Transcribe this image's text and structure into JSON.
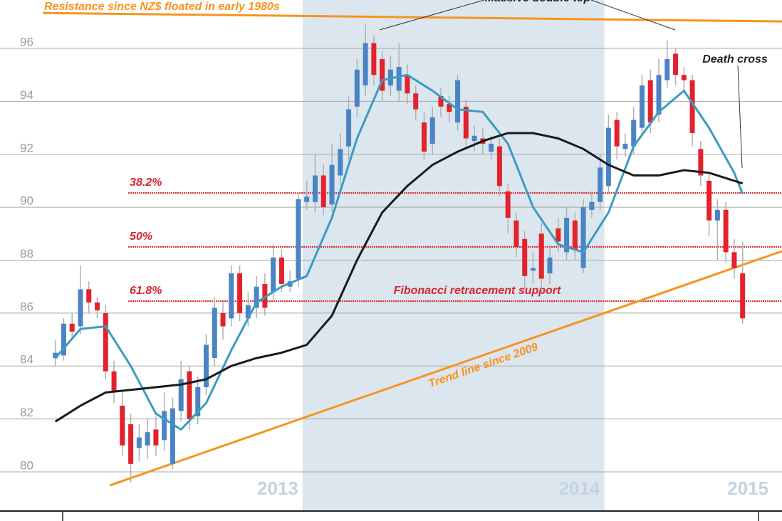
{
  "chart_data": {
    "type": "candlestick",
    "ylim": [
      78.52,
      97.83
    ],
    "yticks": [
      80,
      82,
      84,
      86,
      88,
      90,
      92,
      94,
      96
    ],
    "xlim": [
      -6.6,
      86.7
    ],
    "grid": true,
    "up_color": "#4a84c4",
    "down_color": "#e3222c",
    "open": [
      84.3,
      84.4,
      85.6,
      85.5,
      86.9,
      86.4,
      86.0,
      83.8,
      82.5,
      81.8,
      80.9,
      81.0,
      81.6,
      81.2,
      80.3,
      82.3,
      83.8,
      82.1,
      83.2,
      84.3,
      86.0,
      85.8,
      87.5,
      85.8,
      86.2,
      87.1,
      86.8,
      88.1,
      87.0,
      87.3,
      90.2,
      90.2,
      91.2,
      90.1,
      91.2,
      92.3,
      93.8,
      94.6,
      96.2,
      95.6,
      94.6,
      94.4,
      95.0,
      94.3,
      93.2,
      92.4,
      94.2,
      93.9,
      93.2,
      93.8,
      92.5,
      92.6,
      92.1,
      92.3,
      90.6,
      89.5,
      88.8,
      87.6,
      89.0,
      87.5,
      89.2,
      88.3,
      89.5,
      87.7,
      89.9,
      90.2,
      90.8,
      93.3,
      92.2,
      92.3,
      93.0,
      94.8,
      93.5,
      94.8,
      95.8,
      95.0,
      94.8,
      92.2,
      91.0,
      89.5,
      89.9,
      88.3,
      87.5
    ],
    "high": [
      85.0,
      85.8,
      86.0,
      87.8,
      87.2,
      86.6,
      86.3,
      84.2,
      83.0,
      82.2,
      81.8,
      82.0,
      82.1,
      83.0,
      82.8,
      84.2,
      84.0,
      83.6,
      85.2,
      86.6,
      86.4,
      87.8,
      87.8,
      86.8,
      87.4,
      87.5,
      88.6,
      88.4,
      87.6,
      90.5,
      91.0,
      92.0,
      91.6,
      92.4,
      92.8,
      94.2,
      95.6,
      96.9,
      96.5,
      95.9,
      95.7,
      96.2,
      95.4,
      94.6,
      93.6,
      93.8,
      94.5,
      94.2,
      95.0,
      94.1,
      93.1,
      93.0,
      92.7,
      92.6,
      90.9,
      89.8,
      89.1,
      88.3,
      89.4,
      88.5,
      89.6,
      90.0,
      89.8,
      90.3,
      90.6,
      92.0,
      93.5,
      93.6,
      92.8,
      93.8,
      95.0,
      95.2,
      95.6,
      96.3,
      96.0,
      95.3,
      95.0,
      92.5,
      91.3,
      90.3,
      90.2,
      88.8,
      88.7
    ],
    "low": [
      84.0,
      84.2,
      85.0,
      85.2,
      86.0,
      85.8,
      83.5,
      82.6,
      80.6,
      79.6,
      80.4,
      80.5,
      80.6,
      80.8,
      80.1,
      81.9,
      81.6,
      81.8,
      82.9,
      84.0,
      85.0,
      85.5,
      85.7,
      85.5,
      85.8,
      85.9,
      86.5,
      86.8,
      86.8,
      87.0,
      89.9,
      89.8,
      89.7,
      89.8,
      90.8,
      91.8,
      93.4,
      94.2,
      94.6,
      94.0,
      94.2,
      94.0,
      93.9,
      93.3,
      91.8,
      92.0,
      93.4,
      93.2,
      92.9,
      92.2,
      92.1,
      92.0,
      91.8,
      90.4,
      89.0,
      88.1,
      86.9,
      87.1,
      86.8,
      87.1,
      88.3,
      88.0,
      88.0,
      87.5,
      89.6,
      89.9,
      90.5,
      91.8,
      91.9,
      92.0,
      92.7,
      92.8,
      93.2,
      94.5,
      94.6,
      94.4,
      92.3,
      90.8,
      88.9,
      88.0,
      87.9,
      87.3,
      85.6
    ],
    "close": [
      84.5,
      85.6,
      85.3,
      86.9,
      86.4,
      86.1,
      83.8,
      83.0,
      81.0,
      80.3,
      81.3,
      81.5,
      81.0,
      82.3,
      82.4,
      83.5,
      82.0,
      83.2,
      84.8,
      86.2,
      85.5,
      87.5,
      86.0,
      86.3,
      87.0,
      86.2,
      88.1,
      87.1,
      87.2,
      90.3,
      90.4,
      91.2,
      90.0,
      91.6,
      92.2,
      93.7,
      95.2,
      96.2,
      95.0,
      94.4,
      95.2,
      95.3,
      94.3,
      93.7,
      92.1,
      93.4,
      93.8,
      93.6,
      94.8,
      92.6,
      92.7,
      92.4,
      92.4,
      90.8,
      89.6,
      88.5,
      87.4,
      87.7,
      87.3,
      88.1,
      88.7,
      89.6,
      88.4,
      90.0,
      90.2,
      91.5,
      93.0,
      92.3,
      92.4,
      93.3,
      94.6,
      93.2,
      95.0,
      95.6,
      95.0,
      94.8,
      92.8,
      91.2,
      89.5,
      89.9,
      88.3,
      87.7,
      85.8
    ],
    "moving_averages": [
      {
        "color": "#3b9cc0",
        "x": [
          0,
          3,
          6,
          9,
          12,
          15,
          18,
          21,
          24,
          27,
          30,
          33,
          36,
          39,
          42,
          45,
          48,
          51,
          54,
          57,
          60,
          63,
          66,
          69,
          72,
          75,
          78,
          81,
          82
        ],
        "values": [
          84.3,
          85.4,
          85.5,
          84.0,
          82.2,
          81.6,
          82.6,
          84.6,
          86.4,
          87.0,
          87.4,
          89.6,
          92.6,
          94.8,
          95.0,
          94.4,
          93.7,
          93.6,
          92.4,
          90.0,
          88.6,
          88.3,
          89.8,
          92.3,
          93.6,
          94.4,
          93.0,
          91.3,
          90.5
        ]
      },
      {
        "color": "#1a1a1a",
        "x": [
          0,
          3,
          6,
          9,
          12,
          15,
          18,
          21,
          24,
          27,
          30,
          33,
          36,
          39,
          42,
          45,
          48,
          51,
          54,
          57,
          60,
          63,
          66,
          69,
          72,
          75,
          78,
          81,
          82
        ],
        "values": [
          81.9,
          82.5,
          83.0,
          83.1,
          83.2,
          83.3,
          83.5,
          84.0,
          84.3,
          84.5,
          84.8,
          85.9,
          88.0,
          89.8,
          90.8,
          91.6,
          92.1,
          92.5,
          92.8,
          92.8,
          92.6,
          92.2,
          91.6,
          91.2,
          91.2,
          91.4,
          91.3,
          91.0,
          90.9
        ]
      }
    ],
    "periods": [
      {
        "label": "2013",
        "end": 29.5
      },
      {
        "label": "2014",
        "end": 65.5,
        "shaded": true
      },
      {
        "label": "2015",
        "end": 85.6
      }
    ],
    "resistance": {
      "label": "Resistance since NZ$ floated in early 1980s",
      "x": [
        -1.5,
        86.7
      ],
      "values": [
        97.34,
        97.02
      ],
      "color": "#f7941d"
    },
    "trend": {
      "label": "Trend line since 2009",
      "x": [
        6.5,
        86.7
      ],
      "values": [
        79.49,
        88.34
      ],
      "color": "#f7941d"
    },
    "fibonacci": {
      "label": "Fibonacci retracement support",
      "color": "#d7262e",
      "start": 8.7,
      "levels": [
        {
          "label": "38.2%",
          "value": 90.54
        },
        {
          "label": "50%",
          "value": 88.5
        },
        {
          "label": "61.8%",
          "value": 86.45
        }
      ]
    },
    "annotations": [
      {
        "text": "Massive double top"
      },
      {
        "text": "Death cross"
      }
    ]
  }
}
